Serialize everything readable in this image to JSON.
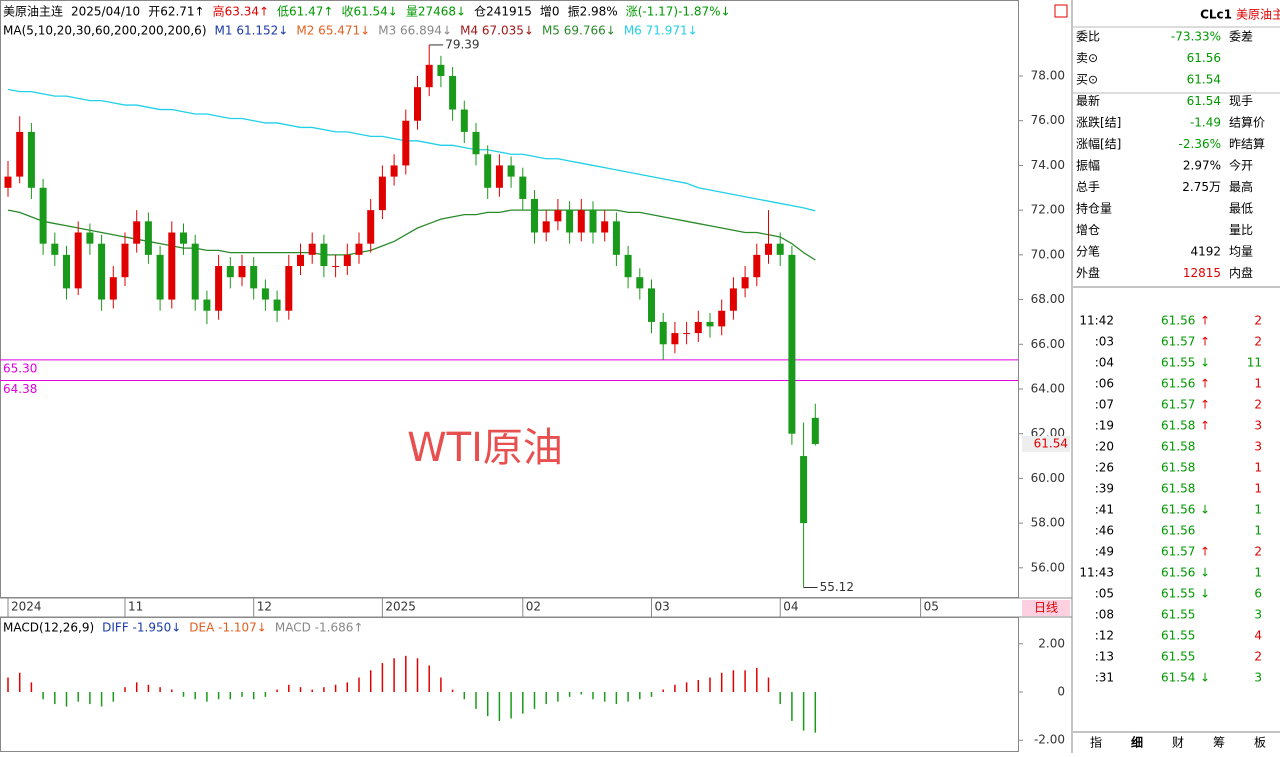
{
  "header": {
    "segments": [
      {
        "text": "美原油主连",
        "color": "#000000"
      },
      {
        "text": "2025/04/10",
        "color": "#000000"
      },
      {
        "text": "开62.71↑",
        "color": "#000000"
      },
      {
        "text": "高63.34↑",
        "color": "#e00000"
      },
      {
        "text": "低61.47↑",
        "color": "#009900"
      },
      {
        "text": "收61.54↓",
        "color": "#009900"
      },
      {
        "text": "量27468↓",
        "color": "#009900"
      },
      {
        "text": "仓241915",
        "color": "#000000"
      },
      {
        "text": "增0",
        "color": "#000000"
      },
      {
        "text": "振2.98%",
        "color": "#000000"
      },
      {
        "text": "涨(-1.17)-1.87%↓",
        "color": "#009900"
      }
    ]
  },
  "ma_legend": [
    {
      "text": "MA(5,10,20,30,60,200,200,200,6)",
      "color": "#000000"
    },
    {
      "text": "M1 61.152↓",
      "color": "#1a3aa8"
    },
    {
      "text": "M2 65.471↓",
      "color": "#e06020"
    },
    {
      "text": "M3 66.894↓",
      "color": "#888888"
    },
    {
      "text": "M4 67.035↓",
      "color": "#a01818"
    },
    {
      "text": "M5 69.766↓",
      "color": "#2a8a2a"
    },
    {
      "text": "M6 71.971↓",
      "color": "#20d0e8"
    }
  ],
  "chart_data": {
    "type": "candlestick",
    "categories": [
      "2024",
      null,
      null,
      null,
      null,
      null,
      null,
      null,
      null,
      null,
      "11",
      null,
      null,
      null,
      null,
      null,
      null,
      null,
      null,
      null,
      null,
      "12",
      null,
      null,
      null,
      null,
      null,
      null,
      null,
      null,
      null,
      null,
      "2025",
      null,
      null,
      null,
      null,
      null,
      null,
      null,
      null,
      null,
      null,
      null,
      "02",
      null,
      null,
      null,
      null,
      null,
      null,
      null,
      null,
      null,
      null,
      "03",
      null,
      null,
      null,
      null,
      null,
      null,
      null,
      null,
      null,
      null,
      "04",
      null,
      null,
      null,
      null,
      null,
      null,
      null,
      null,
      null,
      null,
      null,
      "05"
    ],
    "candles": [
      [
        73,
        74.2,
        72.6,
        73.5
      ],
      [
        73.5,
        76.2,
        73.2,
        75.5
      ],
      [
        75.5,
        75.9,
        72.5,
        73
      ],
      [
        73,
        73.4,
        70,
        70.5
      ],
      [
        70.5,
        71,
        69.5,
        70
      ],
      [
        70,
        70.4,
        68,
        68.5
      ],
      [
        68.5,
        71.5,
        68.2,
        71
      ],
      [
        71,
        71.4,
        70,
        70.5
      ],
      [
        70.5,
        70.9,
        67.5,
        68
      ],
      [
        68,
        69.5,
        67.6,
        69
      ],
      [
        69,
        71,
        68.6,
        70.5
      ],
      [
        70.5,
        72,
        70.1,
        71.5
      ],
      [
        71.5,
        71.9,
        69.6,
        70
      ],
      [
        70,
        70.4,
        67.5,
        68
      ],
      [
        68,
        71.5,
        67.6,
        71
      ],
      [
        71,
        71.4,
        70,
        70.5
      ],
      [
        70.5,
        70.9,
        67.5,
        68
      ],
      [
        68,
        68.4,
        66.9,
        67.5
      ],
      [
        67.5,
        70,
        67.1,
        69.5
      ],
      [
        69.5,
        69.9,
        68.5,
        69
      ],
      [
        69,
        70,
        68.6,
        69.5
      ],
      [
        69.5,
        69.9,
        68,
        68.5
      ],
      [
        68.5,
        68.9,
        67.5,
        68
      ],
      [
        68,
        68.4,
        67,
        67.5
      ],
      [
        67.5,
        70,
        67.1,
        69.5
      ],
      [
        69.5,
        70.5,
        69.1,
        70
      ],
      [
        70,
        71,
        69.6,
        70.5
      ],
      [
        70.5,
        70.9,
        69,
        69.5
      ],
      [
        69.5,
        70,
        69,
        69.5
      ],
      [
        69.5,
        70.5,
        69.1,
        70
      ],
      [
        70,
        71,
        69.6,
        70.5
      ],
      [
        70.5,
        72.5,
        70.1,
        72
      ],
      [
        72,
        74,
        71.6,
        73.5
      ],
      [
        73.5,
        74.5,
        73.1,
        74
      ],
      [
        74,
        76.5,
        73.6,
        76
      ],
      [
        76,
        78,
        75.6,
        77.5
      ],
      [
        77.5,
        79.39,
        77.1,
        78.5
      ],
      [
        78.5,
        78.9,
        77.5,
        78
      ],
      [
        78,
        78.4,
        76,
        76.5
      ],
      [
        76.5,
        76.9,
        75,
        75.5
      ],
      [
        75.5,
        75.9,
        74,
        74.5
      ],
      [
        74.5,
        74.9,
        72.5,
        73
      ],
      [
        73,
        74.5,
        72.6,
        74
      ],
      [
        74,
        74.4,
        73,
        73.5
      ],
      [
        73.5,
        73.9,
        72,
        72.5
      ],
      [
        72.5,
        72.9,
        70.5,
        71
      ],
      [
        71,
        72,
        70.6,
        71.5
      ],
      [
        71.5,
        72.5,
        71.1,
        72
      ],
      [
        72,
        72.4,
        70.5,
        71
      ],
      [
        71,
        72.5,
        70.6,
        72
      ],
      [
        72,
        72.4,
        70.5,
        71
      ],
      [
        71,
        72,
        70.6,
        71.5
      ],
      [
        71.5,
        71.9,
        69.5,
        70
      ],
      [
        70,
        70.4,
        68.5,
        69
      ],
      [
        69,
        69.4,
        68,
        68.5
      ],
      [
        68.5,
        68.9,
        66.5,
        67
      ],
      [
        67,
        67.4,
        65.3,
        66
      ],
      [
        66,
        67,
        65.6,
        66.5
      ],
      [
        66.5,
        67,
        66,
        66.5
      ],
      [
        66.5,
        67.5,
        66.1,
        67
      ],
      [
        67,
        67.4,
        66.3,
        66.8
      ],
      [
        66.8,
        68,
        66.4,
        67.5
      ],
      [
        67.5,
        69,
        67.1,
        68.5
      ],
      [
        68.5,
        69.5,
        68.1,
        69
      ],
      [
        69,
        70.5,
        68.6,
        70
      ],
      [
        70,
        72,
        69.6,
        70.5
      ],
      [
        70.5,
        71,
        69.5,
        70
      ],
      [
        70,
        70.4,
        61.5,
        62
      ],
      [
        61,
        62.5,
        55.12,
        58
      ],
      [
        62.71,
        63.34,
        61.47,
        61.54
      ],
      null,
      null,
      null,
      null,
      null,
      null,
      null,
      null,
      null
    ],
    "up_color": "#e00000",
    "down_color": "#1a9a1a",
    "series": [
      {
        "color": "#20d0e8",
        "values": [
          77.4,
          77.3,
          77.3,
          77.2,
          77.1,
          77.1,
          77.0,
          76.9,
          76.9,
          76.8,
          76.7,
          76.7,
          76.6,
          76.5,
          76.5,
          76.4,
          76.3,
          76.3,
          76.2,
          76.1,
          76.1,
          76.0,
          75.9,
          75.9,
          75.8,
          75.7,
          75.7,
          75.6,
          75.5,
          75.5,
          75.4,
          75.3,
          75.3,
          75.2,
          75.1,
          75.1,
          75.0,
          74.9,
          74.9,
          74.8,
          74.7,
          74.7,
          74.6,
          74.5,
          74.5,
          74.4,
          74.3,
          74.3,
          74.2,
          74.1,
          74.0,
          73.9,
          73.8,
          73.7,
          73.6,
          73.5,
          73.4,
          73.3,
          73.2,
          73.0,
          72.9,
          72.8,
          72.7,
          72.6,
          72.5,
          72.4,
          72.3,
          72.2,
          72.1,
          71.97,
          null,
          null,
          null,
          null,
          null,
          null,
          null,
          null,
          null
        ]
      },
      {
        "color": "#2a8a2a",
        "values": [
          72.0,
          71.9,
          71.7,
          71.5,
          71.4,
          71.3,
          71.2,
          71.1,
          71.0,
          70.9,
          70.8,
          70.7,
          70.6,
          70.5,
          70.4,
          70.3,
          70.3,
          70.2,
          70.2,
          70.1,
          70.1,
          70.1,
          70.1,
          70.1,
          70.1,
          70.1,
          70.1,
          70.0,
          70.0,
          70.0,
          70.1,
          70.2,
          70.4,
          70.6,
          70.9,
          71.2,
          71.4,
          71.6,
          71.7,
          71.8,
          71.8,
          71.9,
          71.9,
          72.0,
          72.0,
          72.0,
          72.0,
          72.0,
          72.0,
          72.0,
          72.0,
          72.0,
          72.0,
          71.9,
          71.9,
          71.8,
          71.7,
          71.6,
          71.5,
          71.4,
          71.3,
          71.2,
          71.1,
          71.0,
          71.0,
          70.9,
          70.8,
          70.5,
          70.1,
          69.77,
          null,
          null,
          null,
          null,
          null,
          null,
          null,
          null,
          null
        ]
      }
    ],
    "ylim": [
      54.65,
      81.4
    ],
    "yticks": [
      {
        "value": 56,
        "label": "56.00"
      },
      {
        "value": 58,
        "label": "58.00"
      },
      {
        "value": 60,
        "label": "60.00"
      },
      {
        "value": 62,
        "label": "62.00"
      },
      {
        "value": 64,
        "label": "64.00"
      },
      {
        "value": 66,
        "label": "66.00"
      },
      {
        "value": 68,
        "label": "68.00"
      },
      {
        "value": 70,
        "label": "70.00"
      },
      {
        "value": 72,
        "label": "72.00"
      },
      {
        "value": 74,
        "label": "74.00"
      },
      {
        "value": 76,
        "label": "76.00"
      },
      {
        "value": 78,
        "label": "78.00"
      }
    ],
    "hlines": [
      {
        "value": 65.3,
        "label": "65.30",
        "color": "#e000e0"
      },
      {
        "value": 64.38,
        "label": "64.38",
        "color": "#e000e0"
      }
    ],
    "annotations": [
      {
        "value": 79.39,
        "label": "79.39"
      },
      {
        "value": 55.12,
        "label": "55.12"
      }
    ],
    "last_price": {
      "value": 61.54,
      "label": "61.54"
    },
    "watermark": "WTI原油",
    "period_tab": "日线"
  },
  "macd_chart": {
    "type": "bar",
    "legend": [
      {
        "text": "MACD(12,26,9)",
        "color": "#000000"
      },
      {
        "text": "DIFF -1.950↓",
        "color": "#1a3aa8"
      },
      {
        "text": "DEA -1.107↓",
        "color": "#e06020"
      },
      {
        "text": "MACD -1.686↑",
        "color": "#888888"
      }
    ],
    "values": [
      0.6,
      0.8,
      0.4,
      -0.3,
      -0.5,
      -0.6,
      -0.4,
      -0.5,
      -0.6,
      -0.4,
      0.2,
      0.4,
      0.3,
      0.2,
      0.1,
      -0.2,
      -0.3,
      -0.4,
      -0.3,
      -0.3,
      -0.2,
      -0.3,
      -0.2,
      0.1,
      0.3,
      0.2,
      0.1,
      0.2,
      0.3,
      0.4,
      0.6,
      0.9,
      1.2,
      1.4,
      1.5,
      1.4,
      1.1,
      0.6,
      0.1,
      -0.3,
      -0.7,
      -1.0,
      -1.2,
      -1.1,
      -0.9,
      -0.7,
      -0.5,
      -0.4,
      -0.2,
      -0.1,
      -0.3,
      -0.4,
      -0.5,
      -0.4,
      -0.3,
      -0.2,
      0.1,
      0.3,
      0.4,
      0.5,
      0.6,
      0.8,
      0.9,
      0.9,
      1.0,
      0.6,
      -0.5,
      -1.2,
      -1.6,
      -1.686,
      null,
      null,
      null,
      null,
      null,
      null,
      null,
      null,
      null
    ],
    "up_color": "#e00000",
    "down_color": "#1a9a1a",
    "ylim": [
      -2.53,
      3.07
    ],
    "yticks": [
      {
        "value": 2,
        "label": "2.00"
      },
      0,
      {
        "value": -2,
        "label": "-2.00"
      }
    ]
  },
  "quote": {
    "symbol": "CLc1",
    "name": "美原油主连",
    "rows": [
      {
        "label": "委比",
        "value": "-73.33%",
        "label2": "委差",
        "color": "#009900"
      },
      {
        "label": "卖⊙",
        "value": "61.56",
        "color": "#009900"
      },
      {
        "label": "买⊙",
        "value": "61.54",
        "color": "#009900"
      },
      {
        "label": "最新",
        "value": "61.54",
        "label2": "现手",
        "color": "#009900"
      },
      {
        "label": "涨跌[结]",
        "value": "-1.49",
        "label2": "结算价",
        "color": "#009900"
      },
      {
        "label": "涨幅[结]",
        "value": "-2.36%",
        "label2": "昨结算",
        "color": "#009900"
      },
      {
        "label": "振幅",
        "value": "2.97%",
        "label2": "今开",
        "color": "#000000"
      },
      {
        "label": "总手",
        "value": "2.75万",
        "label2": "最高",
        "color": "#000000"
      },
      {
        "label": "持仓量",
        "label2": "最低",
        "color": "#000000"
      },
      {
        "label": "增仓",
        "label2": "量比",
        "color": "#000000"
      },
      {
        "label": "分笔",
        "value": "4192",
        "label2": "均量",
        "color": "#000000"
      },
      {
        "label": "外盘",
        "value": "12815",
        "label2": "内盘",
        "color": "#e00000"
      }
    ],
    "trades": [
      {
        "time": "11:42",
        "price": "61.56",
        "dir": "↑",
        "vol": "2",
        "vol_color": "#e00000"
      },
      {
        "time": ":03",
        "price": "61.57",
        "dir": "↑",
        "vol": "2",
        "vol_color": "#e00000"
      },
      {
        "time": ":04",
        "price": "61.55",
        "dir": "↓",
        "vol": "11",
        "vol_color": "#009900"
      },
      {
        "time": ":06",
        "price": "61.56",
        "dir": "↑",
        "vol": "1",
        "vol_color": "#e00000"
      },
      {
        "time": ":07",
        "price": "61.57",
        "dir": "↑",
        "vol": "2",
        "vol_color": "#e00000"
      },
      {
        "time": ":19",
        "price": "61.58",
        "dir": "↑",
        "vol": "3",
        "vol_color": "#e00000"
      },
      {
        "time": ":20",
        "price": "61.58",
        "vol": "3",
        "vol_color": "#e00000"
      },
      {
        "time": ":26",
        "price": "61.58",
        "vol": "1",
        "vol_color": "#e00000"
      },
      {
        "time": ":39",
        "price": "61.58",
        "vol": "1",
        "vol_color": "#e00000"
      },
      {
        "time": ":41",
        "price": "61.56",
        "dir": "↓",
        "vol": "1",
        "vol_color": "#009900"
      },
      {
        "time": ":46",
        "price": "61.56",
        "vol": "1",
        "vol_color": "#009900"
      },
      {
        "time": ":49",
        "price": "61.57",
        "dir": "↑",
        "vol": "2",
        "vol_color": "#e00000"
      },
      {
        "time": "11:43",
        "price": "61.56",
        "dir": "↓",
        "vol": "1",
        "vol_color": "#009900"
      },
      {
        "time": ":05",
        "price": "61.55",
        "dir": "↓",
        "vol": "6",
        "vol_color": "#009900"
      },
      {
        "time": ":08",
        "price": "61.55",
        "vol": "3",
        "vol_color": "#009900"
      },
      {
        "time": ":12",
        "price": "61.55",
        "vol": "4",
        "vol_color": "#e00000"
      },
      {
        "time": ":13",
        "price": "61.55",
        "vol": "2",
        "vol_color": "#e00000"
      },
      {
        "time": ":31",
        "price": "61.54",
        "dir": "↓",
        "vol": "3",
        "vol_color": "#009900"
      }
    ],
    "tabs": [
      "指",
      "细",
      "财",
      "筹",
      "板"
    ]
  }
}
